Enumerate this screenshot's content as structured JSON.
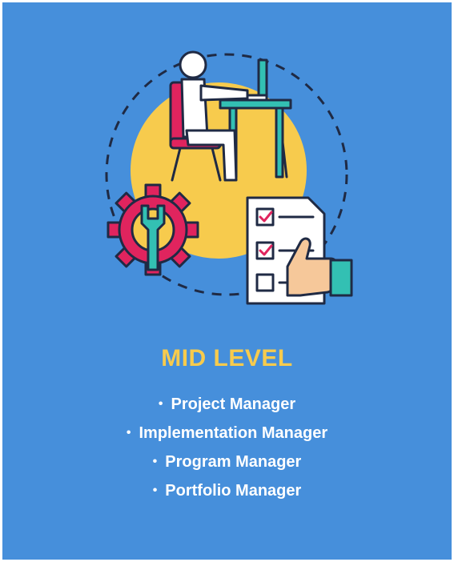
{
  "card": {
    "title": "MID LEVEL",
    "roles": [
      "Project Manager",
      "Implementation Manager",
      "Program Manager",
      "Portfolio Manager"
    ],
    "bullet": "•"
  },
  "colors": {
    "background": "#468fdb",
    "title": "#f7cb4d",
    "text": "#ffffff",
    "sun": "#f7cb4d",
    "chair": "#e0245e",
    "desk": "#33c0b3",
    "outline": "#1f2a44"
  },
  "icons": {
    "illustration": [
      "person-at-desk-icon",
      "gear-wrench-icon",
      "checklist-icon",
      "thumbs-up-icon"
    ]
  }
}
